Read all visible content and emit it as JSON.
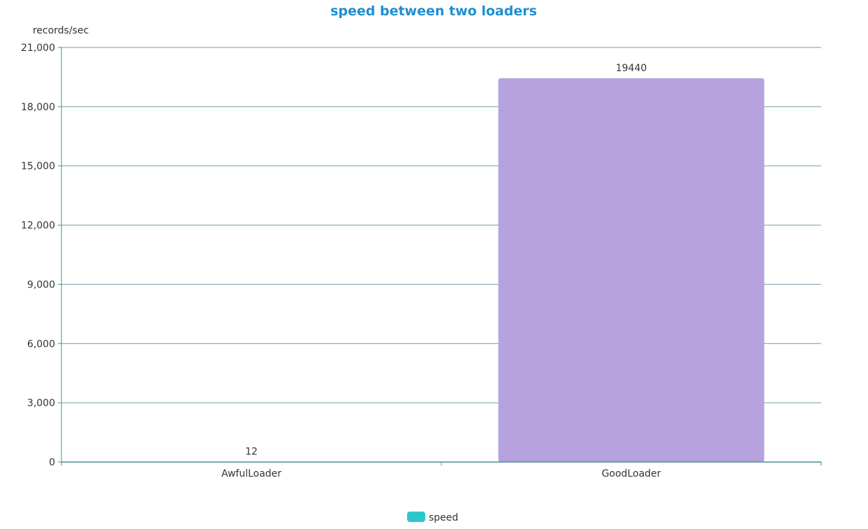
{
  "chart_data": {
    "type": "bar",
    "title": "speed between two loaders",
    "ylabel": "records/sec",
    "xlabel": "",
    "categories": [
      "AwfulLoader",
      "GoodLoader"
    ],
    "series": [
      {
        "name": "speed",
        "values": [
          12,
          19440
        ],
        "data_labels": [
          "12",
          "19440"
        ]
      }
    ],
    "ylim": [
      0,
      21000
    ],
    "yticks": [
      0,
      3000,
      6000,
      9000,
      12000,
      15000,
      18000,
      21000
    ],
    "ytick_labels": [
      "0",
      "3,000",
      "6,000",
      "9,000",
      "12,000",
      "15,000",
      "18,000",
      "21,000"
    ],
    "grid": true,
    "legend_position": "bottom-center",
    "colors": {
      "title": "#1e8fd0",
      "axis": "#4a8f95",
      "grid": "#6c9fa6",
      "bars": [
        "#2ec7c9",
        "#b6a2de"
      ],
      "legend_swatch": "#2ec7c9"
    }
  }
}
